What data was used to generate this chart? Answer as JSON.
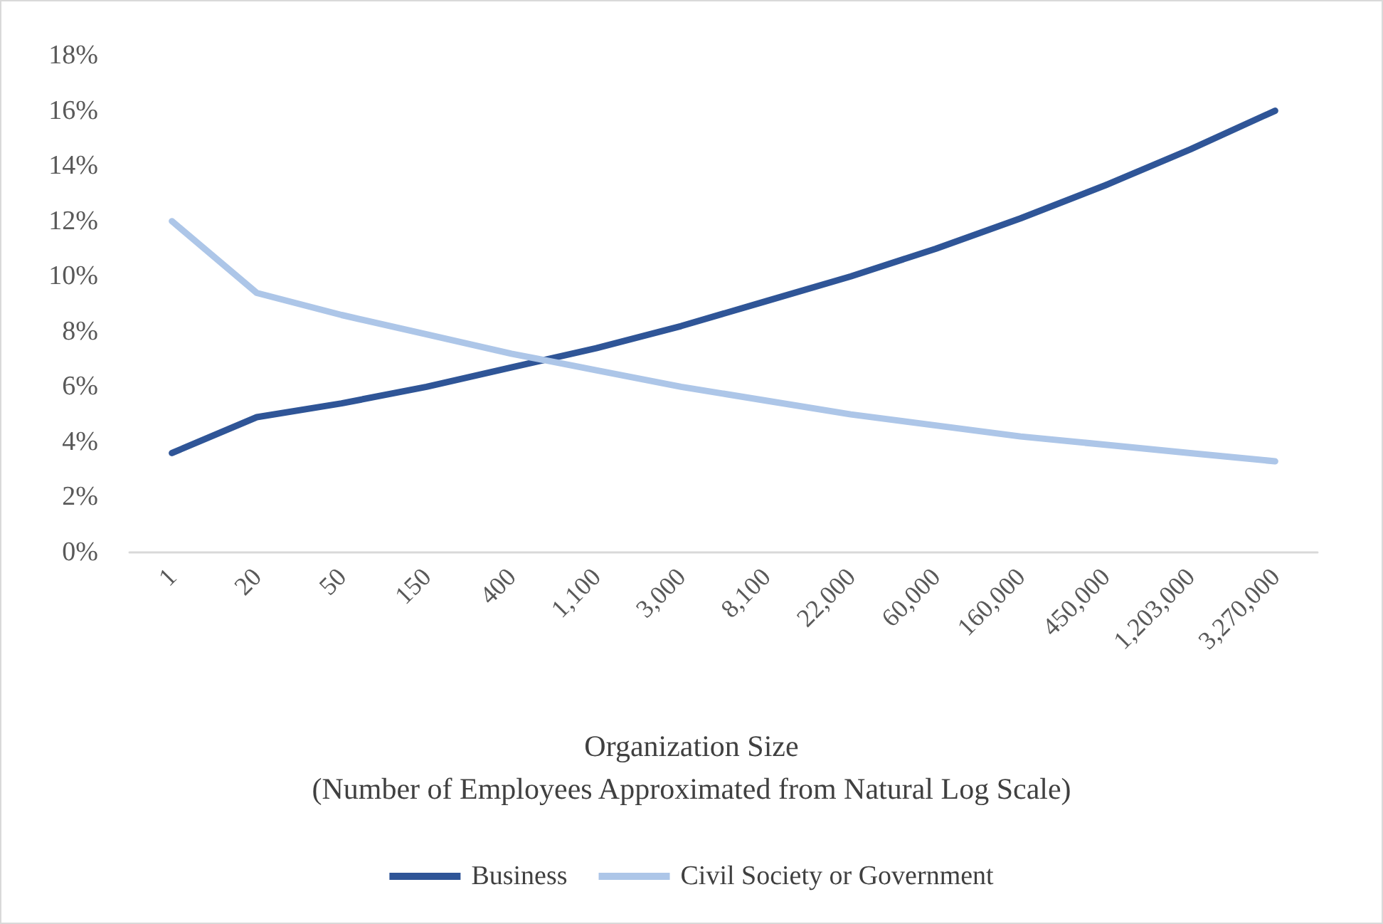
{
  "chart_data": {
    "type": "line",
    "xlabel": "Organization Size\n(Number of Employees Approximated from Natural Log Scale)",
    "categories": [
      "1",
      "20",
      "50",
      "150",
      "400",
      "1,100",
      "3,000",
      "8,100",
      "22,000",
      "60,000",
      "160,000",
      "450,000",
      "1,203,000",
      "3,270,000"
    ],
    "series": [
      {
        "name": "Business",
        "color": "#2f5597",
        "values": [
          3.6,
          4.9,
          5.4,
          6.0,
          6.7,
          7.4,
          8.2,
          9.1,
          10.0,
          11.0,
          12.1,
          13.3,
          14.6,
          16.0
        ]
      },
      {
        "name": "Civil Society or Government",
        "color": "#adc6e8",
        "values": [
          12.0,
          9.4,
          8.6,
          7.9,
          7.2,
          6.6,
          6.0,
          5.5,
          5.0,
          4.6,
          4.2,
          3.9,
          3.6,
          3.3
        ]
      }
    ],
    "ylim": [
      0,
      18
    ],
    "yticks": [
      {
        "value": 0,
        "label": "0%"
      },
      {
        "value": 2,
        "label": "2%"
      },
      {
        "value": 4,
        "label": "4%"
      },
      {
        "value": 6,
        "label": "6%"
      },
      {
        "value": 8,
        "label": "8%"
      },
      {
        "value": 10,
        "label": "10%"
      },
      {
        "value": 12,
        "label": "12%"
      },
      {
        "value": 14,
        "label": "14%"
      },
      {
        "value": 16,
        "label": "16%"
      },
      {
        "value": 18,
        "label": "18%"
      }
    ],
    "grid": false,
    "legend": "bottom",
    "marker": "none",
    "line_style": "solid"
  }
}
